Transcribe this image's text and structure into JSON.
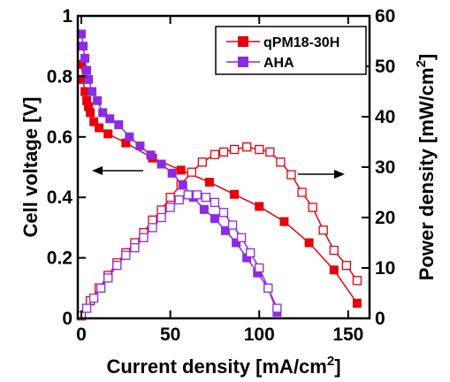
{
  "chart_data": {
    "type": "line",
    "xlabel": "Current density [mA/cm",
    "xlabel_sup": "2",
    "xlabel_end": "]",
    "ylabel": "Cell voltage [V]",
    "y2label": "Power density [mW/cm",
    "y2label_sup": "2",
    "y2label_end": "]",
    "xlim": [
      -2,
      162
    ],
    "ylim": [
      0,
      1
    ],
    "y2lim": [
      0,
      60
    ],
    "xticks": [
      "0",
      "50",
      "100",
      "150"
    ],
    "xtick_values": [
      0,
      50,
      100,
      150
    ],
    "yticks": [
      "0",
      "0.2",
      "0.4",
      "0.6",
      "0.8",
      "1"
    ],
    "ytick_values": [
      0,
      0.2,
      0.4,
      0.6,
      0.8,
      1
    ],
    "y2ticks": [
      "0",
      "10",
      "20",
      "30",
      "40",
      "50",
      "60"
    ],
    "y2tick_values": [
      0,
      10,
      20,
      30,
      40,
      50,
      60
    ],
    "legend_position": "top-right",
    "series": [
      {
        "name": "qPM18-30H",
        "color": "#e8000b",
        "voltage": {
          "x": [
            0,
            1,
            2,
            3,
            4,
            5,
            7,
            10,
            15,
            25,
            40,
            56,
            72,
            86,
            100,
            114,
            128,
            142,
            155
          ],
          "y": [
            0.84,
            0.79,
            0.75,
            0.72,
            0.7,
            0.68,
            0.65,
            0.63,
            0.61,
            0.58,
            0.53,
            0.49,
            0.45,
            0.41,
            0.37,
            0.32,
            0.25,
            0.16,
            0.05
          ]
        },
        "power": {
          "x": [
            0,
            5,
            10,
            15,
            20,
            25,
            30,
            35,
            40,
            45,
            50,
            56,
            62,
            68,
            75,
            80,
            86,
            93,
            100,
            106,
            112,
            118,
            124,
            130,
            136,
            142,
            149,
            155
          ],
          "y": [
            0.5,
            3.5,
            6,
            8.5,
            11,
            13,
            15,
            17,
            19.5,
            21.5,
            24,
            26.5,
            29,
            31,
            32.5,
            33,
            33.5,
            34,
            33.5,
            33,
            31,
            28.5,
            25,
            22,
            17.5,
            13.5,
            10.5,
            7.5
          ]
        }
      },
      {
        "name": "AHA",
        "color": "#8b2be2",
        "voltage": {
          "x": [
            0,
            1,
            2,
            3,
            4,
            6,
            9,
            12,
            16,
            21,
            27,
            33,
            39,
            45,
            51,
            57,
            63,
            69,
            75,
            81,
            87,
            93,
            99,
            105,
            110
          ],
          "y": [
            0.94,
            0.9,
            0.86,
            0.82,
            0.79,
            0.75,
            0.72,
            0.68,
            0.66,
            0.64,
            0.6,
            0.57,
            0.54,
            0.51,
            0.48,
            0.44,
            0.4,
            0.36,
            0.33,
            0.29,
            0.25,
            0.2,
            0.15,
            0.1,
            0.02
          ]
        },
        "power": {
          "x": [
            0,
            3,
            7,
            11,
            15,
            20,
            25,
            30,
            35,
            40,
            45,
            50,
            55,
            60,
            65,
            70,
            75,
            80,
            85,
            90,
            95,
            100,
            105,
            110
          ],
          "y": [
            0.5,
            2,
            4,
            6,
            8,
            10.5,
            12.5,
            14,
            16,
            18,
            20,
            22,
            23.5,
            24.5,
            24.5,
            24,
            23,
            21,
            18.5,
            16,
            13,
            10,
            6,
            2
          ]
        }
      }
    ],
    "annotations": [
      "left-arrow: voltage axis",
      "right-arrow: power axis"
    ]
  }
}
